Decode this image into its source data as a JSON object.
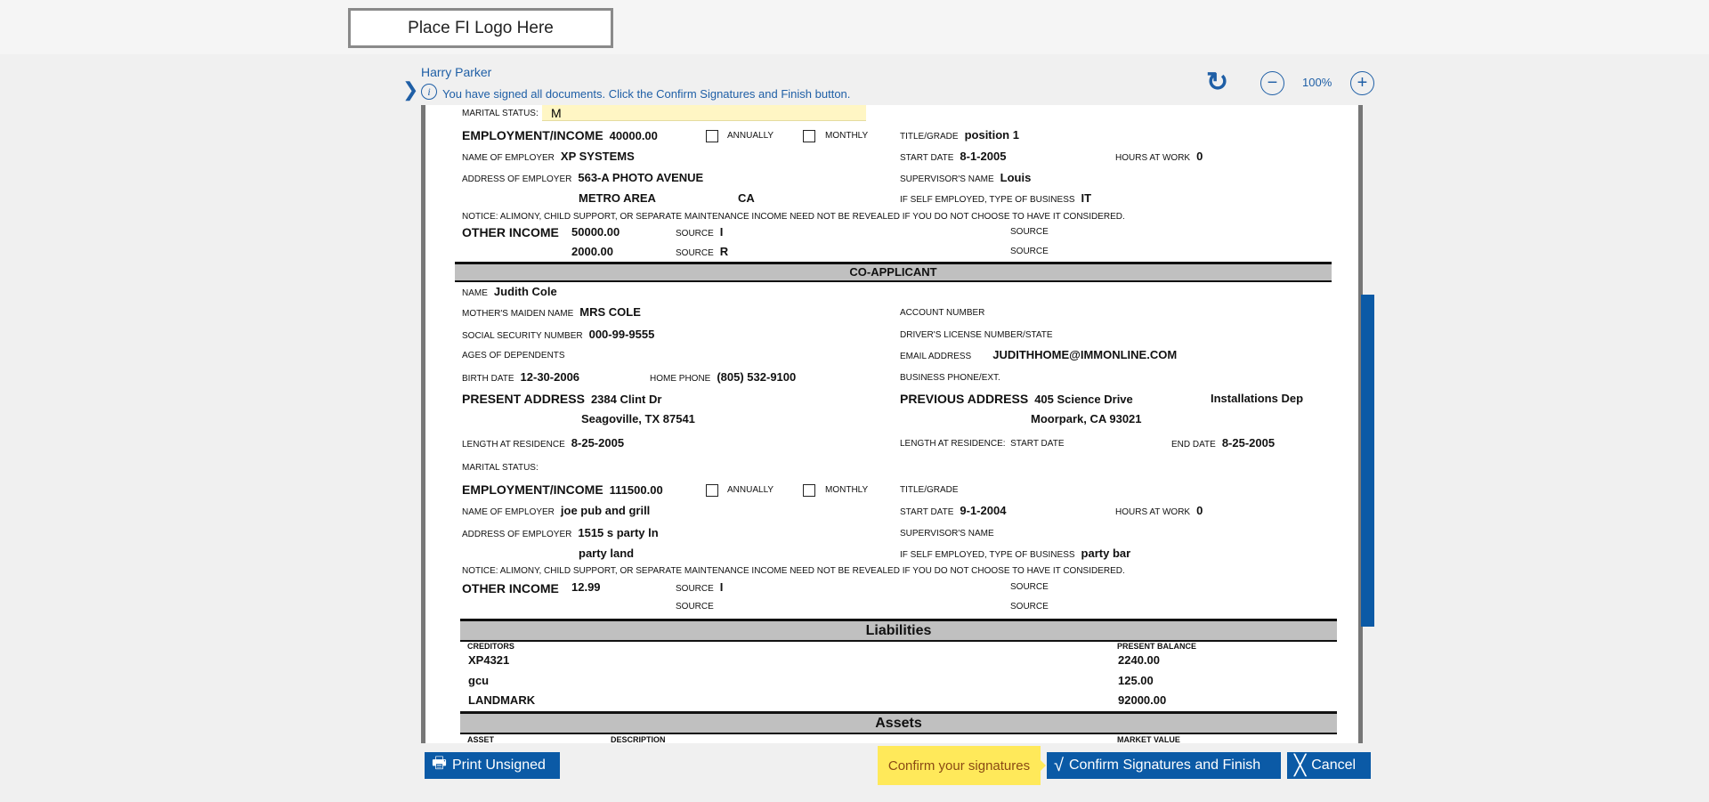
{
  "logo": {
    "text": "Place FI Logo Here"
  },
  "header": {
    "signer": "Harry Parker",
    "info": "You have signed all documents. Click the Confirm Signatures and Finish button.",
    "zoom": "100%"
  },
  "applicant": {
    "marital_label": "MARITAL STATUS:",
    "marital": "M",
    "emp_label": "EMPLOYMENT/INCOME",
    "income": "40000.00",
    "annually": "ANNUALLY",
    "monthly": "MONTHLY",
    "title_label": "TITLE/GRADE",
    "title": "position 1",
    "employer_label": "NAME OF EMPLOYER",
    "employer": "XP SYSTEMS",
    "start_label": "START DATE",
    "start": "8-1-2005",
    "hours_label": "HOURS AT WORK",
    "hours": "0",
    "addr_label": "ADDRESS OF EMPLOYER",
    "addr1": "563-A PHOTO AVENUE",
    "city": "METRO AREA",
    "state": "CA",
    "supervisor_label": "SUPERVISOR'S NAME",
    "supervisor": "Louis",
    "self_label": "IF SELF EMPLOYED, TYPE OF BUSINESS",
    "business": "IT",
    "notice": "NOTICE: ALIMONY, CHILD SUPPORT, OR SEPARATE MAINTENANCE INCOME NEED NOT BE REVEALED IF YOU DO NOT CHOOSE TO HAVE IT CONSIDERED.",
    "other_label": "OTHER INCOME",
    "other1": "50000.00",
    "other2": "2000.00",
    "source_label": "SOURCE",
    "source1": "I",
    "source2": "R"
  },
  "co": {
    "heading": "CO-APPLICANT",
    "name_label": "NAME",
    "name": "Judith Cole",
    "mmn_label": "MOTHER'S MAIDEN NAME",
    "mmn": "MRS COLE",
    "acct_label": "ACCOUNT NUMBER",
    "ssn_label": "SOCIAL SECURITY NUMBER",
    "ssn": "000-99-9555",
    "dl_label": "DRIVER'S LICENSE NUMBER/STATE",
    "ages_label": "AGES OF DEPENDENTS",
    "email_label": "EMAIL ADDRESS",
    "email": "JUDITHHOME@IMMONLINE.COM",
    "birth_label": "BIRTH DATE",
    "birth": "12-30-2006",
    "phone_label": "HOME PHONE",
    "phone": "(805) 532-9100",
    "bphone_label": "BUSINESS PHONE/EXT.",
    "present_label": "PRESENT ADDRESS",
    "present1": "2384 Clint Dr",
    "present2": "Seagoville, TX 87541",
    "prev_label": "PREVIOUS ADDRESS",
    "prev1": "405 Science Drive",
    "prev_extra": "Installations Dep",
    "prev2": "Moorpark, CA 93021",
    "len_label": "LENGTH AT RESIDENCE",
    "len": "8-25-2005",
    "len2_label": "LENGTH AT RESIDENCE:  START DATE",
    "end_label": "END DATE",
    "end": "8-25-2005",
    "marital_label": "MARITAL STATUS:",
    "income": "111500.00",
    "employer": "joe pub and grill",
    "start": "9-1-2004",
    "hours": "0",
    "addr1": "1515 s party ln",
    "city": "party land",
    "business": "party bar",
    "other1": "12.99",
    "source1": "I"
  },
  "liabilities": {
    "heading": "Liabilities",
    "col1": "CREDITORS",
    "col2": "PRESENT BALANCE",
    "rows": [
      {
        "creditor": "XP4321",
        "balance": "2240.00"
      },
      {
        "creditor": "gcu",
        "balance": "125.00"
      },
      {
        "creditor": "LANDMARK",
        "balance": "92000.00"
      }
    ]
  },
  "assets": {
    "heading": "Assets",
    "col1": "ASSET",
    "col2": "DESCRIPTION",
    "col3": "MARKET VALUE"
  },
  "footer": {
    "print": "Print Unsigned",
    "tooltip": "Confirm your signatures",
    "confirm": "Confirm Signatures and Finish",
    "cancel": "Cancel"
  }
}
